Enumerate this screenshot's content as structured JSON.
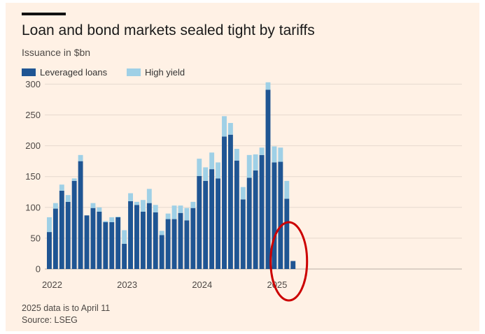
{
  "title": "Loan and bond markets sealed tight by tariffs",
  "subtitle": "Issuance in $bn",
  "legend": {
    "loans_label": "Leveraged loans",
    "hy_label": "High yield"
  },
  "footer": {
    "note": "2025 data is to April 11",
    "source": "Source: LSEG"
  },
  "colors": {
    "background": "#fff1e5",
    "loans": "#1f5593",
    "high_yield": "#9fd0e6",
    "grid": "#e6d9ce",
    "highlight": "#cc0000"
  },
  "chart_data": {
    "type": "bar",
    "stacked": true,
    "categories": [
      "Jan 2022",
      "Feb 2022",
      "Mar 2022",
      "Apr 2022",
      "May 2022",
      "Jun 2022",
      "Jul 2022",
      "Aug 2022",
      "Sep 2022",
      "Oct 2022",
      "Nov 2022",
      "Dec 2022",
      "Jan 2023",
      "Feb 2023",
      "Mar 2023",
      "Apr 2023",
      "May 2023",
      "Jun 2023",
      "Jul 2023",
      "Aug 2023",
      "Sep 2023",
      "Oct 2023",
      "Nov 2023",
      "Dec 2023",
      "Jan 2024",
      "Feb 2024",
      "Mar 2024",
      "Apr 2024",
      "May 2024",
      "Jun 2024",
      "Jul 2024",
      "Aug 2024",
      "Sep 2024",
      "Oct 2024",
      "Nov 2024",
      "Dec 2024",
      "Jan 2025",
      "Feb 2025",
      "Mar 2025",
      "Apr 2025"
    ],
    "series": [
      {
        "name": "Leveraged loans",
        "values": [
          60,
          98,
          127,
          109,
          143,
          175,
          87,
          99,
          93,
          76,
          76,
          84,
          41,
          110,
          104,
          93,
          107,
          92,
          55,
          81,
          81,
          91,
          79,
          99,
          151,
          143,
          162,
          147,
          215,
          218,
          176,
          113,
          148,
          160,
          185,
          291,
          173,
          174,
          114,
          13
        ]
      },
      {
        "name": "High yield",
        "values": [
          24,
          9,
          10,
          11,
          4,
          10,
          0,
          8,
          7,
          2,
          8,
          1,
          22,
          13,
          5,
          19,
          23,
          12,
          7,
          9,
          22,
          12,
          20,
          10,
          28,
          22,
          27,
          26,
          33,
          19,
          19,
          20,
          37,
          26,
          12,
          12,
          26,
          23,
          29,
          0
        ]
      }
    ],
    "x_tick_labels": [
      {
        "label": "2022",
        "index": 0
      },
      {
        "label": "2023",
        "index": 12
      },
      {
        "label": "2024",
        "index": 24
      },
      {
        "label": "2025",
        "index": 36
      }
    ],
    "y_ticks": [
      0,
      50,
      100,
      150,
      200,
      250,
      300
    ],
    "ylim": [
      0,
      305
    ],
    "title": "Loan and bond markets sealed tight by tariffs",
    "ylabel": "Issuance in $bn",
    "xlabel": "",
    "grid": true,
    "legend_position": "top-left",
    "annotation": "red circle around latest bar (April 2025)"
  }
}
